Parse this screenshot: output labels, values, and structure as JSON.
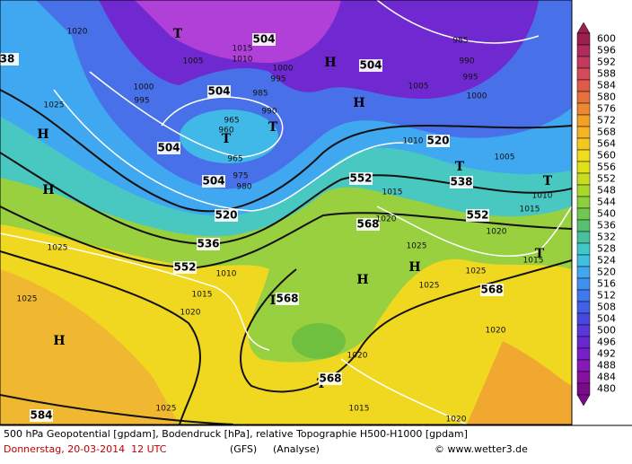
{
  "map": {
    "labels": [
      "1020",
      "38",
      "1025",
      "H",
      "1000",
      "995",
      "1005",
      "1015",
      "1010",
      "504",
      "T",
      "H",
      "504",
      "1000",
      "995",
      "504",
      "985",
      "990",
      "965",
      "960",
      "T",
      "T",
      "504",
      "965",
      "504",
      "975",
      "980",
      "520",
      "536",
      "552",
      "1010",
      "1015",
      "1020",
      "1025",
      "H",
      "1025",
      "H",
      "985",
      "990",
      "995",
      "1005",
      "1000",
      "H",
      "1010",
      "520",
      "T",
      "538",
      "1005",
      "552",
      "1015",
      "552",
      "T",
      "1010",
      "1015",
      "568",
      "1020",
      "1020",
      "1025",
      "H",
      "1025",
      "H",
      "1025",
      "568",
      "T",
      "1015",
      "T",
      "568",
      "1020",
      "1020",
      "T",
      "568",
      "1015",
      "1025",
      "584",
      "1020"
    ]
  },
  "legend": {
    "values": [
      600,
      596,
      592,
      588,
      584,
      580,
      576,
      572,
      568,
      564,
      560,
      556,
      552,
      548,
      544,
      540,
      536,
      532,
      528,
      524,
      520,
      516,
      512,
      508,
      504,
      500,
      496,
      492,
      488,
      484,
      480
    ],
    "colors": [
      "#9c1f4f",
      "#b02a5c",
      "#c43a5e",
      "#d44a58",
      "#e05a4a",
      "#e8703c",
      "#ee8830",
      "#f2a028",
      "#f4b424",
      "#f4c820",
      "#f0dc1c",
      "#e0e018",
      "#c8dc20",
      "#a8d82c",
      "#8cd03c",
      "#70c850",
      "#58c070",
      "#48c0a0",
      "#40c8c8",
      "#40c0e0",
      "#40a8f0",
      "#4090f0",
      "#4078f0",
      "#4060e8",
      "#4848e0",
      "#5838d8",
      "#6828d0",
      "#7820c8",
      "#8818b8",
      "#8810a0",
      "#780c88"
    ]
  },
  "footer": {
    "description": "500 hPa Geopotential [gpdam], Bodendruck [hPa], relative Topographie H500-H1000 [gpdam]",
    "date": "Donnerstag, 20-03-2014  12 UTC",
    "model": "(GFS)",
    "run": "(Analyse)",
    "credit": "© www.wetter3.de"
  }
}
